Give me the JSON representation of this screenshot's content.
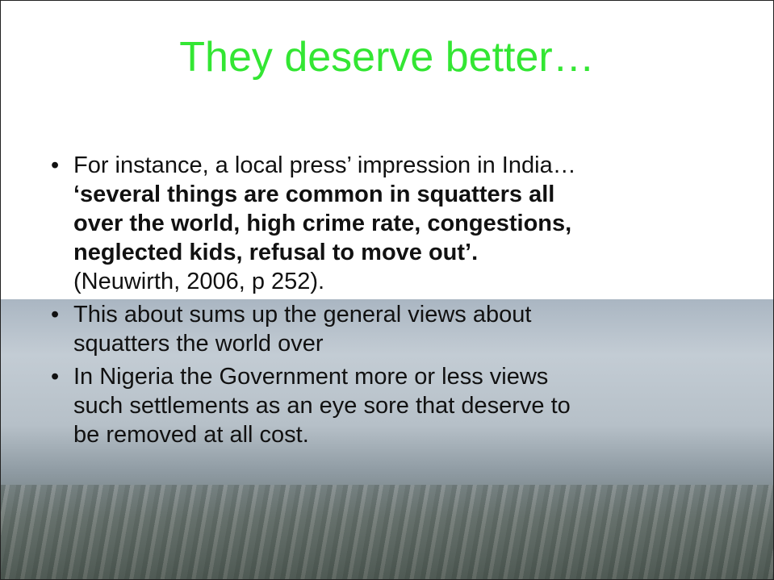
{
  "title": "They deserve better…",
  "bullets": [
    {
      "lines": [
        "For instance, a local press’ impression in India…",
        "‘several things are common in squatters all",
        "over the world, high crime rate, congestions,",
        "neglected kids, refusal to move out’.",
        "(Neuwirth, 2006, p 252)."
      ],
      "bold": [
        false,
        true,
        true,
        true,
        false
      ]
    },
    {
      "lines": [
        "This about sums up the general views about",
        "squatters the world over"
      ],
      "bold": [
        false,
        false
      ]
    },
    {
      "lines": [
        "In Nigeria the Government more or less views",
        "such settlements as an eye sore that deserve to",
        "be removed at all cost."
      ],
      "bold": [
        false,
        false,
        false
      ]
    }
  ]
}
